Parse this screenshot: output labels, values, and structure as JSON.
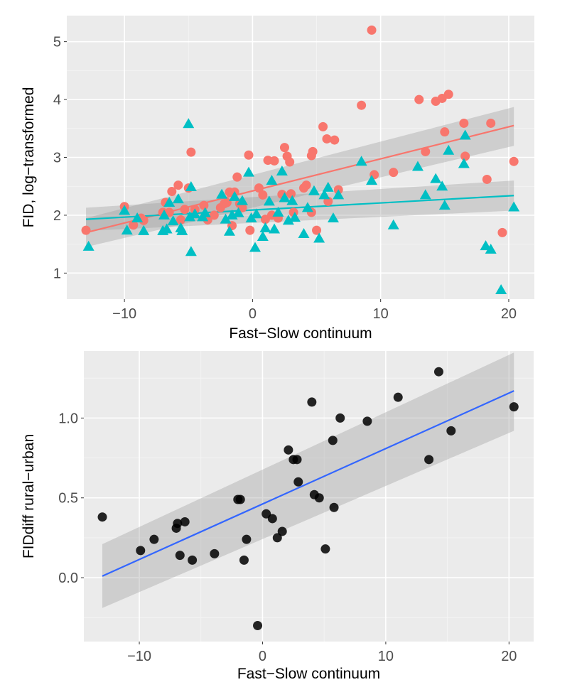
{
  "chart_data": [
    {
      "type": "scatter",
      "xlabel": "Fast−Slow continuum",
      "ylabel": "FID, log−transformed",
      "xlim": [
        -14.5,
        22
      ],
      "ylim": [
        0.55,
        5.45
      ],
      "xticks": [
        -10,
        0,
        10,
        20
      ],
      "xtick_labels": [
        "−10",
        "0",
        "10",
        "20"
      ],
      "yticks": [
        1,
        2,
        3,
        4,
        5
      ],
      "ytick_labels": [
        "1",
        "2",
        "3",
        "4",
        "5"
      ],
      "grid": true,
      "legend": "none",
      "series": [
        {
          "color": "#F8766D",
          "marker": "circle",
          "points": [
            [
              -13,
              1.74
            ],
            [
              -10,
              2.15
            ],
            [
              -9.3,
              1.83
            ],
            [
              -8.7,
              1.95
            ],
            [
              -8.5,
              1.91
            ],
            [
              -7,
              2.05
            ],
            [
              -6.8,
              2.22
            ],
            [
              -6.5,
              2.05
            ],
            [
              -6.3,
              2.41
            ],
            [
              -5.8,
              2.52
            ],
            [
              -5.6,
              1.92
            ],
            [
              -5.3,
              2.1
            ],
            [
              -5,
              2.47
            ],
            [
              -4.8,
              3.09
            ],
            [
              -4.5,
              2.1
            ],
            [
              -3.8,
              2.17
            ],
            [
              -3.5,
              1.92
            ],
            [
              -3.0,
              2.0
            ],
            [
              -2.5,
              2.13
            ],
            [
              -2.2,
              2.2
            ],
            [
              -2.0,
              2.22
            ],
            [
              -1.8,
              2.4
            ],
            [
              -1.6,
              1.82
            ],
            [
              -1.4,
              2.4
            ],
            [
              -1.2,
              2.66
            ],
            [
              -1.0,
              2.2
            ],
            [
              -0.8,
              2.13
            ],
            [
              -0.3,
              3.04
            ],
            [
              -0.2,
              1.74
            ],
            [
              0.5,
              2.47
            ],
            [
              0.8,
              2.35
            ],
            [
              1.0,
              1.93
            ],
            [
              1.2,
              2.95
            ],
            [
              1.5,
              2.0
            ],
            [
              1.7,
              2.94
            ],
            [
              2.0,
              1.95
            ],
            [
              2.3,
              2.36
            ],
            [
              2.5,
              3.17
            ],
            [
              2.7,
              3.02
            ],
            [
              2.9,
              2.92
            ],
            [
              3.0,
              2.37
            ],
            [
              3.2,
              2.05
            ],
            [
              4.0,
              2.47
            ],
            [
              4.2,
              2.52
            ],
            [
              4.6,
              2.05
            ],
            [
              4.6,
              3.03
            ],
            [
              4.7,
              3.1
            ],
            [
              5.0,
              1.74
            ],
            [
              5.5,
              3.53
            ],
            [
              5.8,
              3.32
            ],
            [
              5.9,
              2.24
            ],
            [
              6.4,
              3.3
            ],
            [
              6.7,
              2.44
            ],
            [
              8.5,
              3.9
            ],
            [
              9.3,
              5.2
            ],
            [
              9.5,
              2.7
            ],
            [
              11.0,
              2.74
            ],
            [
              13.0,
              4.0
            ],
            [
              13.5,
              3.1
            ],
            [
              14.3,
              3.97
            ],
            [
              14.8,
              4.02
            ],
            [
              15.0,
              3.44
            ],
            [
              15.3,
              4.09
            ],
            [
              16.5,
              3.59
            ],
            [
              16.6,
              3.02
            ],
            [
              18.3,
              2.62
            ],
            [
              18.6,
              3.59
            ],
            [
              19.5,
              1.7
            ],
            [
              20.4,
              2.93
            ]
          ],
          "trend": {
            "x": [
              -13,
              20.4
            ],
            "y": [
              1.7,
              3.55
            ],
            "ci_low": [
              1.45,
              3.2
            ],
            "ci_high": [
              1.95,
              3.87
            ]
          }
        },
        {
          "color": "#00BFC4",
          "marker": "triangle",
          "points": [
            [
              -12.8,
              1.46
            ],
            [
              -10,
              2.08
            ],
            [
              -9.8,
              1.74
            ],
            [
              -9.0,
              1.95
            ],
            [
              -8.5,
              1.73
            ],
            [
              -7.0,
              1.73
            ],
            [
              -6.9,
              2.0
            ],
            [
              -6.7,
              1.76
            ],
            [
              -6.5,
              2.22
            ],
            [
              -6.2,
              1.9
            ],
            [
              -5.8,
              2.28
            ],
            [
              -5.6,
              1.78
            ],
            [
              -5.5,
              1.73
            ],
            [
              -5.0,
              3.58
            ],
            [
              -4.9,
              1.97
            ],
            [
              -4.8,
              2.49
            ],
            [
              -4.8,
              1.37
            ],
            [
              -4.5,
              2.02
            ],
            [
              -3.9,
              1.97
            ],
            [
              -3.7,
              2.04
            ],
            [
              -2.4,
              2.36
            ],
            [
              -2.1,
              1.93
            ],
            [
              -1.8,
              1.72
            ],
            [
              -1.6,
              2.0
            ],
            [
              -1.4,
              2.32
            ],
            [
              -1.1,
              2.04
            ],
            [
              -0.8,
              2.25
            ],
            [
              -0.3,
              2.74
            ],
            [
              -0.1,
              1.95
            ],
            [
              0.2,
              1.44
            ],
            [
              0.3,
              2.02
            ],
            [
              0.8,
              1.63
            ],
            [
              1.0,
              1.78
            ],
            [
              1.3,
              2.24
            ],
            [
              1.5,
              2.6
            ],
            [
              1.7,
              1.76
            ],
            [
              2.0,
              2.05
            ],
            [
              2.3,
              2.76
            ],
            [
              2.5,
              2.3
            ],
            [
              2.8,
              1.91
            ],
            [
              3.1,
              2.25
            ],
            [
              3.3,
              1.96
            ],
            [
              4.0,
              1.68
            ],
            [
              4.3,
              2.13
            ],
            [
              4.8,
              2.42
            ],
            [
              5.2,
              1.6
            ],
            [
              5.6,
              2.35
            ],
            [
              5.9,
              2.48
            ],
            [
              6.3,
              1.95
            ],
            [
              6.7,
              2.35
            ],
            [
              8.5,
              2.93
            ],
            [
              9.3,
              2.6
            ],
            [
              11.0,
              1.83
            ],
            [
              12.9,
              2.84
            ],
            [
              13.5,
              2.35
            ],
            [
              14.3,
              2.63
            ],
            [
              14.8,
              2.5
            ],
            [
              15.0,
              2.17
            ],
            [
              15.3,
              3.12
            ],
            [
              16.5,
              2.89
            ],
            [
              16.6,
              3.38
            ],
            [
              18.2,
              1.47
            ],
            [
              18.6,
              1.41
            ],
            [
              19.4,
              0.71
            ],
            [
              20.4,
              2.14
            ]
          ],
          "trend": {
            "x": [
              -13,
              20.4
            ],
            "y": [
              1.93,
              2.34
            ],
            "ci_low": [
              1.73,
              2.08
            ],
            "ci_high": [
              2.13,
              2.6
            ]
          }
        }
      ]
    },
    {
      "type": "scatter",
      "xlabel": "Fast−Slow continuum",
      "ylabel": "FIDdiff rural−urban",
      "xlim": [
        -14.5,
        22
      ],
      "ylim": [
        -0.4,
        1.42
      ],
      "xticks": [
        -10,
        0,
        10,
        20
      ],
      "xtick_labels": [
        "−10",
        "0",
        "10",
        "20"
      ],
      "yticks": [
        0.0,
        0.5,
        1.0
      ],
      "ytick_labels": [
        "0.0",
        "0.5",
        "1.0"
      ],
      "grid": true,
      "legend": "none",
      "series": [
        {
          "color": "#000000",
          "marker": "circle",
          "points": [
            [
              -13,
              0.38
            ],
            [
              -9.9,
              0.17
            ],
            [
              -8.8,
              0.24
            ],
            [
              -7.0,
              0.31
            ],
            [
              -6.9,
              0.34
            ],
            [
              -6.7,
              0.14
            ],
            [
              -6.3,
              0.35
            ],
            [
              -5.7,
              0.11
            ],
            [
              -3.9,
              0.15
            ],
            [
              -2.0,
              0.49
            ],
            [
              -1.8,
              0.49
            ],
            [
              -1.5,
              0.11
            ],
            [
              -1.3,
              0.24
            ],
            [
              -0.4,
              -0.3
            ],
            [
              0.3,
              0.4
            ],
            [
              0.8,
              0.37
            ],
            [
              1.2,
              0.25
            ],
            [
              1.6,
              0.29
            ],
            [
              2.1,
              0.8
            ],
            [
              2.5,
              0.74
            ],
            [
              2.8,
              0.74
            ],
            [
              2.9,
              0.6
            ],
            [
              4.0,
              1.1
            ],
            [
              4.2,
              0.52
            ],
            [
              4.6,
              0.5
            ],
            [
              5.1,
              0.18
            ],
            [
              5.7,
              0.86
            ],
            [
              5.8,
              0.44
            ],
            [
              6.3,
              1.0
            ],
            [
              8.5,
              0.98
            ],
            [
              11.0,
              1.13
            ],
            [
              13.5,
              0.74
            ],
            [
              14.3,
              1.29
            ],
            [
              15.3,
              0.92
            ],
            [
              20.4,
              1.07
            ]
          ],
          "trend": {
            "x": [
              -13,
              20.4
            ],
            "y": [
              0.01,
              1.17
            ],
            "ci_low": [
              -0.19,
              0.92
            ],
            "ci_high": [
              0.21,
              1.41
            ]
          }
        }
      ]
    }
  ]
}
